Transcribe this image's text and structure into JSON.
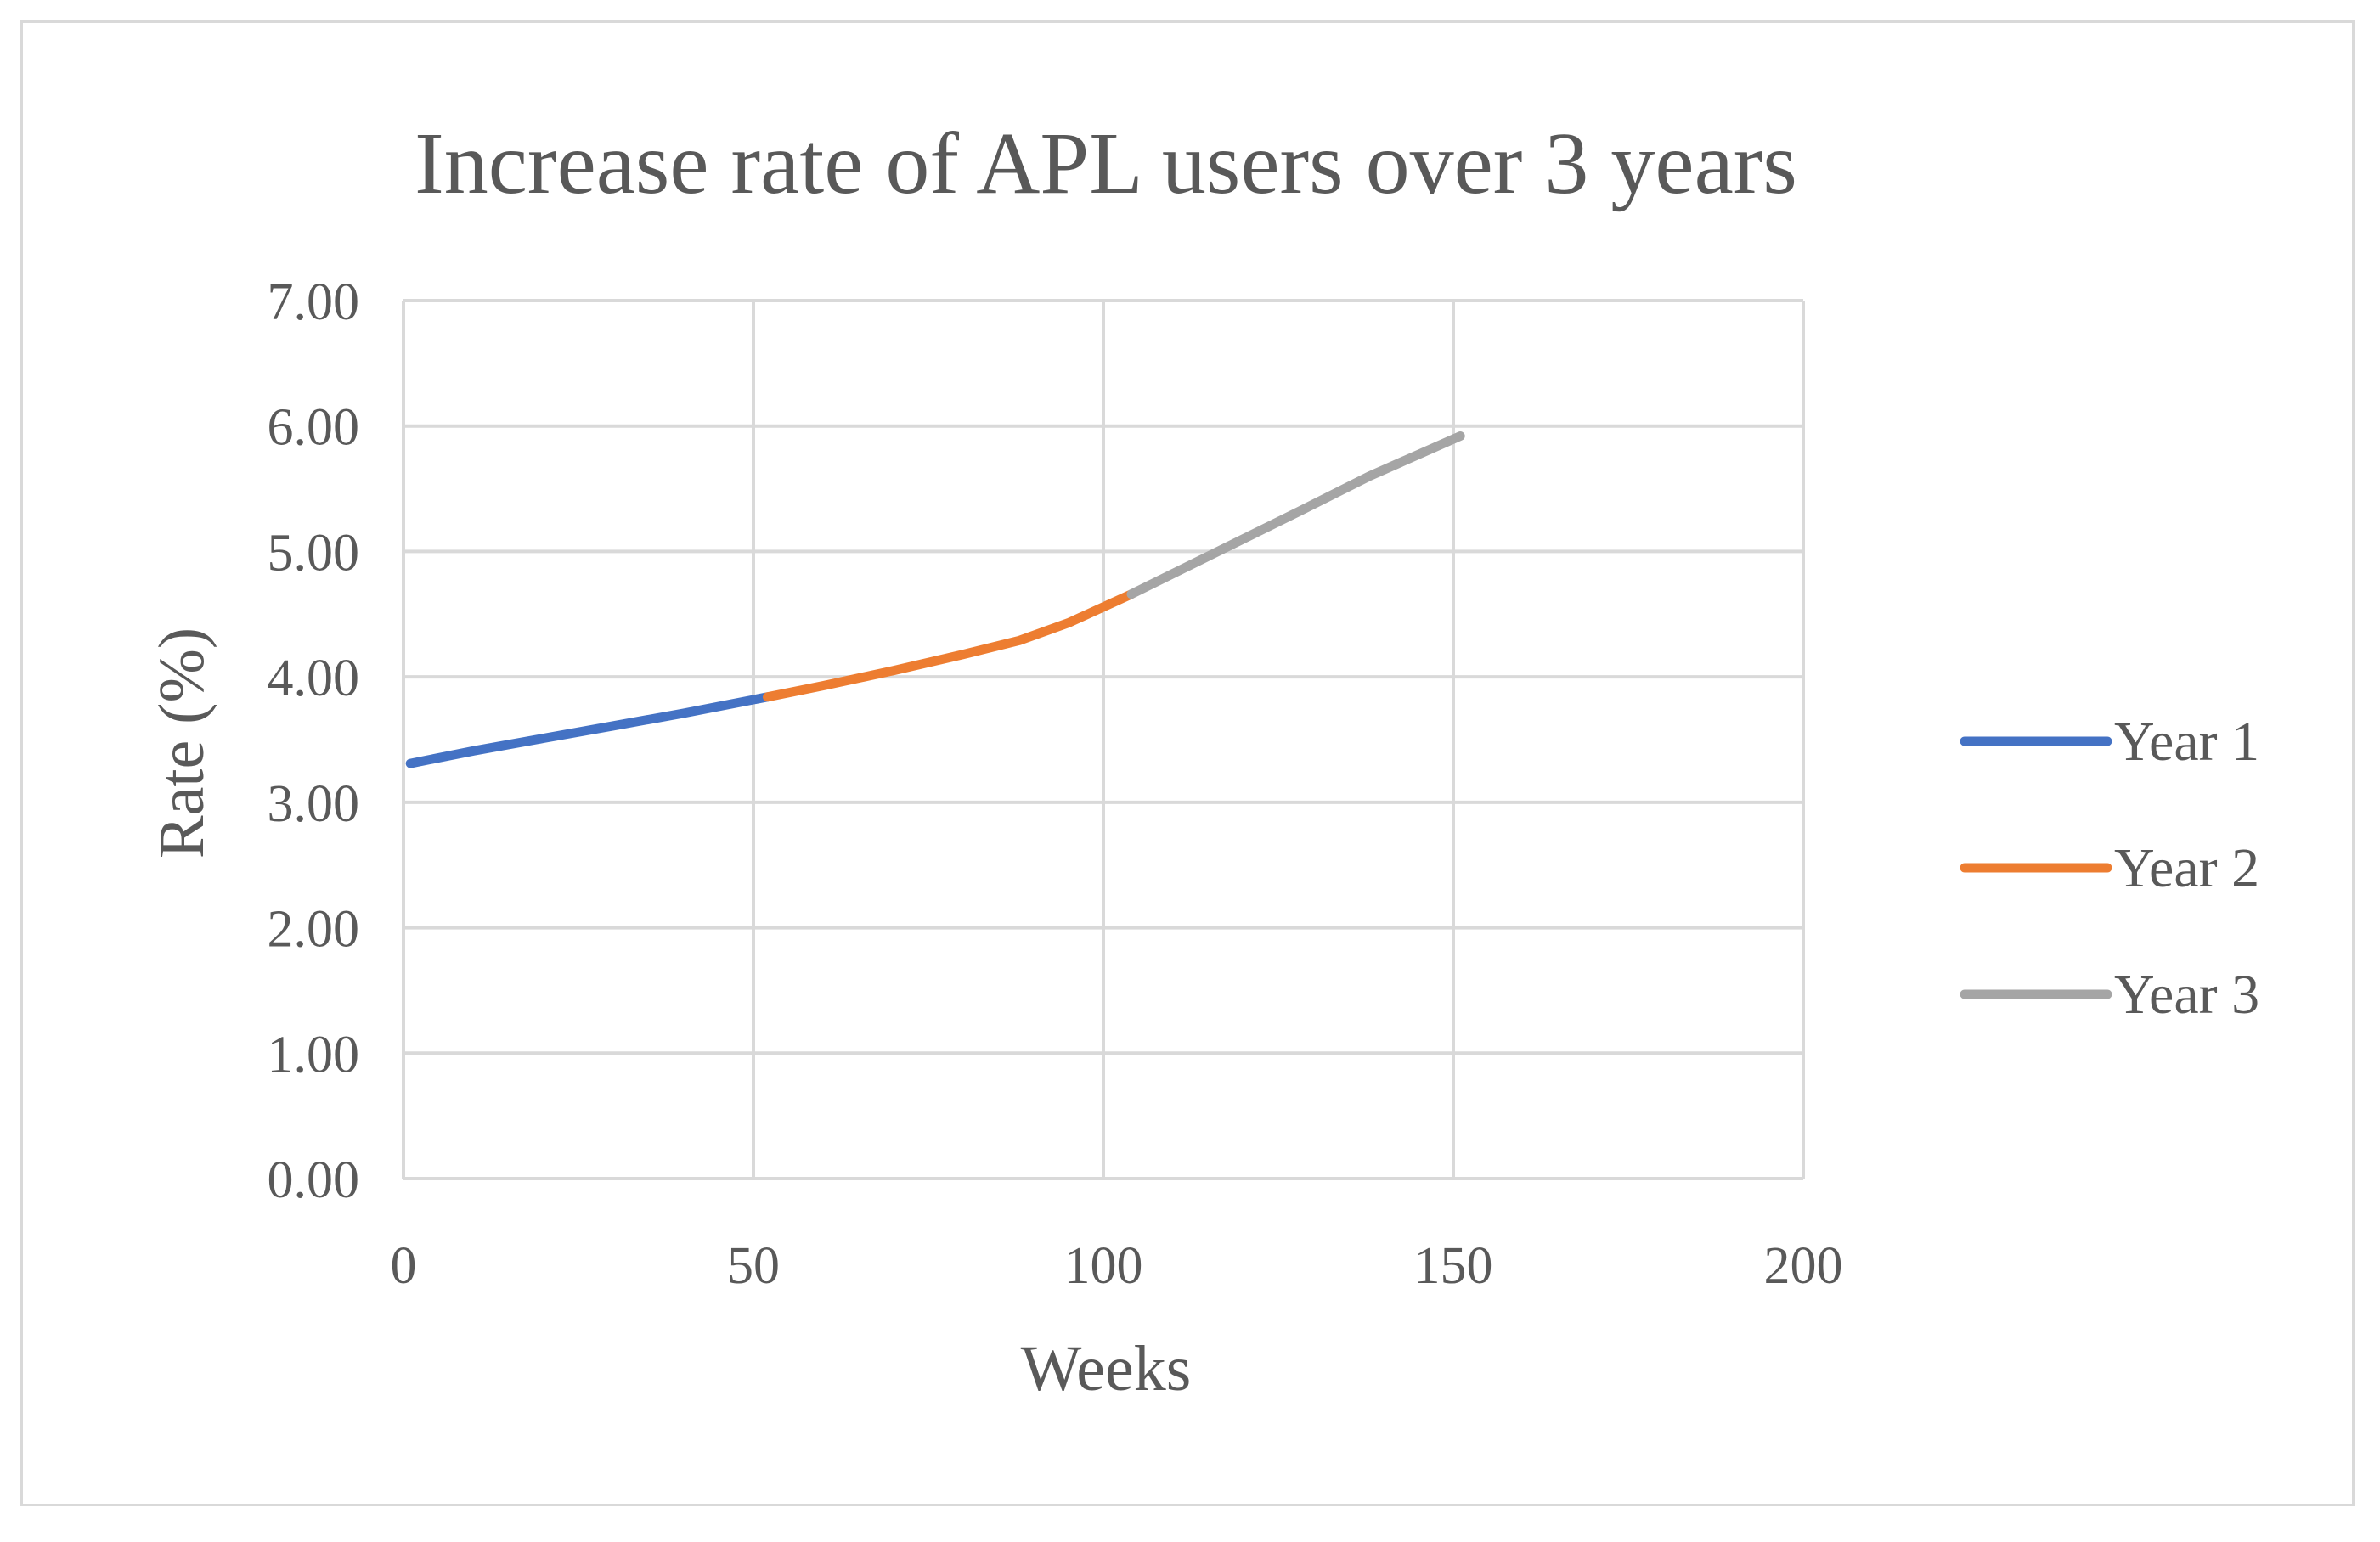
{
  "chart_data": {
    "type": "line",
    "title": "Increase rate of APL users over 3 years",
    "xlabel": "Weeks",
    "ylabel": "Rate (%)",
    "xlim": [
      0,
      200
    ],
    "ylim": [
      0,
      7
    ],
    "x_ticks": [
      0,
      50,
      100,
      150,
      200
    ],
    "x_tick_labels": [
      "0",
      "50",
      "100",
      "150",
      "200"
    ],
    "y_ticks": [
      0,
      1,
      2,
      3,
      4,
      5,
      6,
      7
    ],
    "y_tick_labels": [
      "0.00",
      "1.00",
      "2.00",
      "3.00",
      "4.00",
      "5.00",
      "6.00",
      "7.00"
    ],
    "grid": true,
    "legend_position": "right",
    "series": [
      {
        "name": "Year 1",
        "color": "#4472c4",
        "x": [
          1,
          10,
          20,
          30,
          40,
          52
        ],
        "y": [
          3.31,
          3.41,
          3.51,
          3.61,
          3.71,
          3.84
        ]
      },
      {
        "name": "Year 2",
        "color": "#ed7d31",
        "x": [
          52,
          60,
          70,
          80,
          88,
          95,
          104
        ],
        "y": [
          3.84,
          3.93,
          4.05,
          4.18,
          4.29,
          4.43,
          4.66
        ]
      },
      {
        "name": "Year 3",
        "color": "#a5a5a5",
        "x": [
          104,
          112,
          120,
          128,
          138,
          151
        ],
        "y": [
          4.66,
          4.88,
          5.1,
          5.32,
          5.6,
          5.92
        ]
      }
    ]
  }
}
